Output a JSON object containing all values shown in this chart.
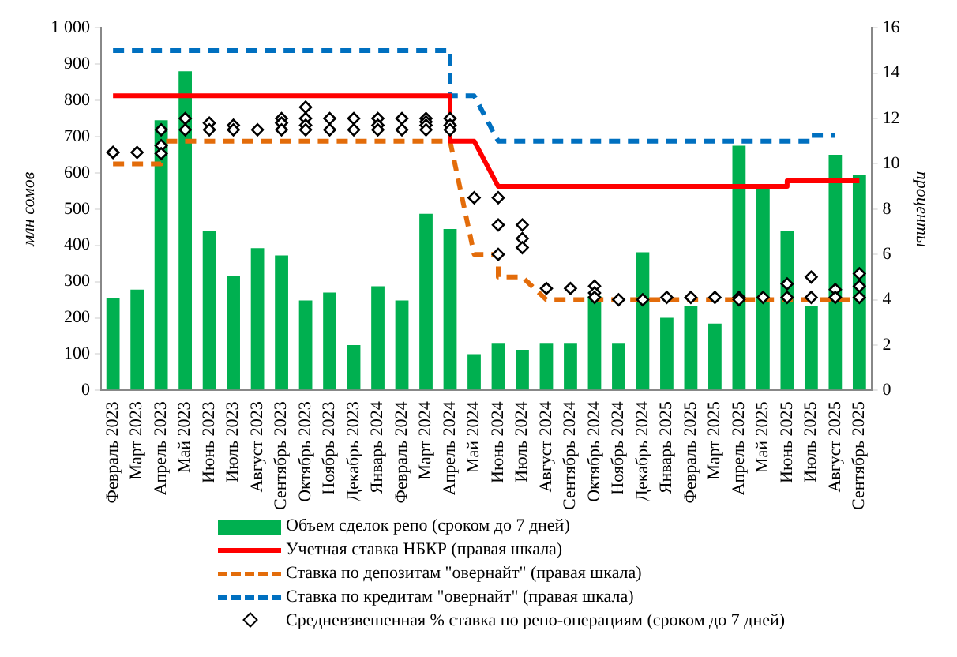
{
  "chart_data": {
    "type": "bar",
    "categories": [
      "Февраль 2023",
      "Март 2023",
      "Апрель 2023",
      "Май 2023",
      "Июнь 2023",
      "Июль 2023",
      "Август 2023",
      "Сентябрь 2023",
      "Октябрь 2023",
      "Ноябрь 2023",
      "Декабрь 2023",
      "Январь 2024",
      "Февраль 2024",
      "Март 2024",
      "Апрель 2024",
      "Май 2024",
      "Июнь 2024",
      "Июль 2024",
      "Август 2024",
      "Сентябрь 2024",
      "Октябрь 2024",
      "Ноябрь 2024",
      "Декабрь 2024",
      "Январь 2025",
      "Февраль 2025",
      "Март 2025",
      "Апрель 2025",
      "Май 2025",
      "Июнь 2025",
      "Июль 2025",
      "Август 2025",
      "Сентябрь 2025"
    ],
    "ylabel": "млн сомов",
    "y2label": "проценты",
    "ylim": [
      0,
      1000
    ],
    "yticks": [
      0,
      100,
      200,
      300,
      400,
      500,
      600,
      700,
      800,
      900,
      {
        "value": 1000,
        "label": "1 000"
      }
    ],
    "y2lim": [
      0,
      16
    ],
    "y2ticks": [
      0,
      2,
      4,
      6,
      8,
      10,
      12,
      14,
      16
    ],
    "grid": false,
    "legend": "bottom",
    "series": [
      {
        "name": "Объем сделок репо (сроком до 7 дней)",
        "color": "#00b050",
        "values": [
          255,
          278,
          745,
          880,
          440,
          315,
          392,
          372,
          248,
          270,
          125,
          287,
          248,
          487,
          445,
          100,
          131,
          112,
          131,
          131,
          260,
          131,
          381,
          200,
          234,
          184,
          675,
          560,
          440,
          234,
          650,
          594
        ]
      },
      {
        "name": "Учетная ставка НБКР (правая шкала)",
        "type": "line",
        "axis": "y2",
        "color": "#ff0000",
        "line_style": "solid",
        "x": [
          "Февраль 2023",
          "Апрель 2024",
          "Апрель 2024",
          "Май 2024",
          "Июнь 2024",
          "Июнь 2025",
          "Июнь 2025",
          "Сентябрь 2025"
        ],
        "values": [
          13,
          13,
          11,
          11,
          9,
          9,
          9.25,
          9.25
        ]
      },
      {
        "name": "Ставка по депозитам \"овернайт\" (правая шкала)",
        "type": "line",
        "axis": "y2",
        "color": "#e36c0a",
        "line_style": "dashed",
        "x": [
          "Февраль 2023",
          "Апрель 2023",
          "Апрель 2023",
          "Апрель 2024",
          "Май 2024",
          "Июнь 2024",
          "Июнь 2024",
          "Июль 2024",
          "Август 2024",
          "Сентябрь 2025"
        ],
        "values": [
          10,
          10,
          11,
          11,
          6,
          6,
          5,
          5,
          4,
          4
        ]
      },
      {
        "name": "Ставка по кредитам \"овернайт\" (правая шкала)",
        "type": "line",
        "axis": "y2",
        "color": "#0070c0",
        "line_style": "dashed",
        "x": [
          "Февраль 2023",
          "Апрель 2024",
          "Апрель 2024",
          "Май 2024",
          "Июнь 2024",
          "Июль 2025",
          "Июль 2025",
          "Август 2025"
        ],
        "values": [
          15,
          15,
          13,
          13,
          11,
          11,
          11.25,
          11.25
        ]
      },
      {
        "name": "Средневзвешенная % ставка по репо-операциям (сроком до 7 дней)",
        "type": "scatter",
        "axis": "y2",
        "color": "#000000",
        "marker": "diamond",
        "x": [
          "Февраль 2023",
          "Февраль 2023",
          "Март 2023",
          "Апрель 2023",
          "Апрель 2023",
          "Апрель 2023",
          "Май 2023",
          "Май 2023",
          "Июнь 2023",
          "Июнь 2023",
          "Июль 2023",
          "Июль 2023",
          "Август 2023",
          "Сентябрь 2023",
          "Сентябрь 2023",
          "Сентябрь 2023",
          "Октябрь 2023",
          "Октябрь 2023",
          "Октябрь 2023",
          "Октябрь 2023",
          "Ноябрь 2023",
          "Ноябрь 2023",
          "Декабрь 2023",
          "Декабрь 2023",
          "Январь 2024",
          "Январь 2024",
          "Январь 2024",
          "Февраль 2024",
          "Февраль 2024",
          "Март 2024",
          "Март 2024",
          "Март 2024",
          "Март 2024",
          "Апрель 2024",
          "Апрель 2024",
          "Апрель 2024",
          "Май 2024",
          "Июнь 2024",
          "Июнь 2024",
          "Июнь 2024",
          "Июль 2024",
          "Июль 2024",
          "Июль 2024",
          "Август 2024",
          "Сентябрь 2024",
          "Октябрь 2024",
          "Октябрь 2024",
          "Октябрь 2024",
          "Ноябрь 2024",
          "Декабрь 2024",
          "Январь 2025",
          "Февраль 2025",
          "Март 2025",
          "Апрель 2025",
          "Апрель 2025",
          "Май 2025",
          "Июнь 2025",
          "Июнь 2025",
          "Июль 2025",
          "Июль 2025",
          "Август 2025",
          "Август 2025",
          "Сентябрь 2025",
          "Сентябрь 2025",
          "Сентябрь 2025"
        ],
        "values": [
          10.5,
          10.5,
          10.5,
          11.5,
          10.8,
          10.45,
          12,
          11.5,
          11.8,
          11.5,
          11.7,
          11.5,
          11.5,
          12,
          11.8,
          11.5,
          12.5,
          12,
          11.7,
          11.5,
          12,
          11.5,
          12,
          11.5,
          12,
          11.7,
          11.5,
          12,
          11.5,
          12,
          11.85,
          11.7,
          11.5,
          12,
          11.7,
          11.5,
          8.5,
          8.5,
          7.3,
          6,
          7.3,
          6.7,
          6.3,
          4.5,
          4.5,
          4.6,
          4.3,
          4.1,
          4,
          4,
          4.1,
          4.1,
          4.1,
          4.1,
          4,
          4.1,
          4.7,
          4.1,
          5,
          4.1,
          4.45,
          4.1,
          5.15,
          4.6,
          4.1
        ]
      }
    ]
  }
}
